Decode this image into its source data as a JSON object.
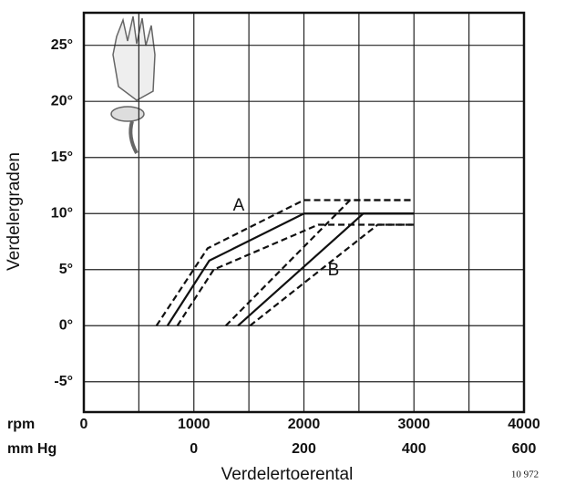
{
  "chart_data": {
    "type": "line",
    "y_label": "Verdelergraden",
    "x_label": "Verdelertoerental",
    "x_unit": "rpm",
    "x2_unit": "mm Hg",
    "note": "10 972",
    "curve_labels": [
      "A",
      "B"
    ],
    "xlim": [
      0,
      4000
    ],
    "xticks": [
      0,
      1000,
      2000,
      3000,
      4000
    ],
    "xminor": [
      500,
      1500,
      2500,
      3500
    ],
    "x2lim": [
      -200,
      600
    ],
    "x2ticks": [
      0,
      200,
      400,
      600
    ],
    "ylim": [
      -7.7,
      27.9
    ],
    "yticks": [
      {
        "value": -5,
        "label": "-5°"
      },
      {
        "value": 0,
        "label": "0°"
      },
      {
        "value": 5,
        "label": "5°"
      },
      {
        "value": 10,
        "label": "10°"
      },
      {
        "value": 15,
        "label": "15°"
      },
      {
        "value": 20,
        "label": "20°"
      },
      {
        "value": 25,
        "label": "25°"
      }
    ],
    "grid": true,
    "series": [
      {
        "style": "solid",
        "color": "#111",
        "x": [
          760,
          1140,
          2000,
          3000
        ],
        "values": [
          0,
          5.8,
          10,
          10
        ]
      },
      {
        "style": "dashed",
        "color": "#111",
        "x": [
          660,
          1125,
          2000,
          3000
        ],
        "values": [
          0,
          6.9,
          11.2,
          11.2
        ]
      },
      {
        "style": "dashed",
        "color": "#111",
        "x": [
          850,
          1180,
          2130,
          3000
        ],
        "values": [
          0,
          5.0,
          9.0,
          9.0
        ]
      },
      {
        "style": "solid",
        "color": "#111",
        "x": [
          1400,
          2540,
          3000
        ],
        "values": [
          0,
          10,
          10
        ]
      },
      {
        "style": "dashed",
        "color": "#111",
        "x": [
          1290,
          2420,
          3000
        ],
        "values": [
          0,
          11.2,
          11.2
        ]
      },
      {
        "style": "dashed",
        "color": "#111",
        "x": [
          1510,
          2670,
          3000
        ],
        "values": [
          0,
          9.0,
          9.0
        ]
      }
    ]
  }
}
